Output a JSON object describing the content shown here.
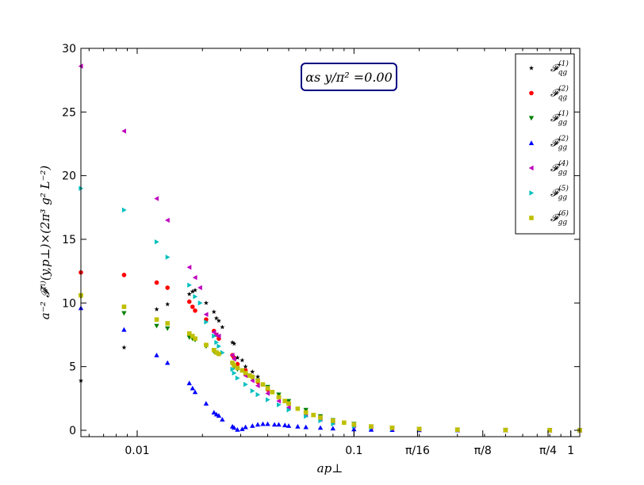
{
  "chart_data": {
    "type": "scatter",
    "xlabel": "ap⊥",
    "ylabel": "a⁻² 𝓕⁽ⁱ⁾(y,p⊥)×(2π³ g² L⁻²)",
    "annotation": "αs y/π² =0.00",
    "xscale": "log",
    "xlim": [
      0.0055,
      1.1
    ],
    "ylim": [
      -0.5,
      30
    ],
    "xticks": [
      {
        "value": 0.01,
        "label": "0.01"
      },
      {
        "value": 0.1,
        "label": "0.1"
      },
      {
        "value": 0.19635,
        "label": "π/16"
      },
      {
        "value": 0.3927,
        "label": "π/8"
      },
      {
        "value": 0.7854,
        "label": "π/4"
      },
      {
        "value": 1.0,
        "label": "1"
      }
    ],
    "yticks": [
      0,
      5,
      10,
      15,
      20,
      25,
      30
    ],
    "legend_position": "top-right",
    "series": [
      {
        "name": "𝓕qg(1)",
        "sub": "qg",
        "sup": "(1)",
        "color": "#000000",
        "marker": "star",
        "x": [
          0.0055,
          0.0087,
          0.0123,
          0.0138,
          0.0174,
          0.018,
          0.0185,
          0.0208,
          0.0226,
          0.0232,
          0.0238,
          0.0247,
          0.0275,
          0.028,
          0.029,
          0.0305,
          0.0316,
          0.034,
          0.036,
          0.04,
          0.045,
          0.05,
          0.06,
          0.07,
          0.08,
          0.1,
          0.12,
          0.15,
          0.2,
          0.3,
          0.5,
          0.8,
          1.1
        ],
        "y": [
          3.9,
          6.5,
          9.5,
          9.9,
          10.7,
          10.9,
          11.0,
          10.0,
          9.3,
          8.8,
          8.6,
          8.1,
          6.9,
          6.8,
          5.7,
          5.5,
          5.0,
          4.6,
          4.2,
          3.3,
          2.6,
          2.1,
          1.4,
          1.0,
          0.7,
          0.4,
          0.25,
          0.15,
          0.08,
          0.04,
          0.02,
          0.01,
          0.0
        ]
      },
      {
        "name": "𝓕qg(2)",
        "sub": "qg",
        "sup": "(2)",
        "color": "#ff0000",
        "marker": "circle",
        "x": [
          0.0055,
          0.0087,
          0.0123,
          0.0138,
          0.0174,
          0.018,
          0.0185,
          0.0208,
          0.0226,
          0.0232,
          0.0238,
          0.0275,
          0.028,
          0.029,
          0.0316,
          0.034,
          0.036,
          0.04,
          0.045,
          0.05,
          0.06,
          0.07,
          0.08,
          0.1,
          0.12,
          0.15,
          0.2,
          0.3,
          0.5,
          0.8,
          1.1
        ],
        "y": [
          12.4,
          12.2,
          11.6,
          11.2,
          10.1,
          9.7,
          9.4,
          8.7,
          7.8,
          7.5,
          7.2,
          5.9,
          5.7,
          5.2,
          4.7,
          4.2,
          3.8,
          3.2,
          2.6,
          2.1,
          1.4,
          1.0,
          0.7,
          0.4,
          0.25,
          0.15,
          0.08,
          0.04,
          0.02,
          0.01,
          0.0
        ]
      },
      {
        "name": "𝓕gg(1)",
        "sub": "gg",
        "sup": "(1)",
        "color": "#008000",
        "marker": "triangle-down",
        "x": [
          0.0055,
          0.0087,
          0.0123,
          0.0138,
          0.0174,
          0.018,
          0.0185,
          0.0208,
          0.0226,
          0.0232,
          0.0238,
          0.0275,
          0.028,
          0.029,
          0.0316,
          0.034,
          0.036,
          0.04,
          0.045,
          0.05,
          0.06,
          0.07,
          0.08,
          0.1,
          0.12,
          0.15,
          0.2,
          0.3,
          0.5,
          0.8,
          1.1
        ],
        "y": [
          10.5,
          9.2,
          8.2,
          8.0,
          7.3,
          7.2,
          7.1,
          6.6,
          6.2,
          6.1,
          6.0,
          5.2,
          5.0,
          4.8,
          4.4,
          4.1,
          3.9,
          3.4,
          2.8,
          2.3,
          1.6,
          1.1,
          0.8,
          0.5,
          0.3,
          0.18,
          0.1,
          0.05,
          0.02,
          0.01,
          0.0
        ]
      },
      {
        "name": "𝓕gg(2)",
        "sub": "gg",
        "sup": "(2)",
        "color": "#0000ff",
        "marker": "triangle-up",
        "x": [
          0.0055,
          0.0087,
          0.0123,
          0.0138,
          0.0174,
          0.018,
          0.0185,
          0.0208,
          0.0226,
          0.0232,
          0.0238,
          0.0247,
          0.0275,
          0.028,
          0.029,
          0.0305,
          0.0316,
          0.034,
          0.036,
          0.038,
          0.04,
          0.043,
          0.045,
          0.048,
          0.05,
          0.055,
          0.06,
          0.07,
          0.08,
          0.1,
          0.12,
          0.15,
          0.2,
          0.3,
          0.5,
          0.8,
          1.1
        ],
        "y": [
          9.6,
          7.9,
          5.9,
          5.3,
          3.7,
          3.3,
          3.0,
          2.1,
          1.4,
          1.25,
          1.15,
          0.85,
          0.3,
          0.2,
          0.05,
          0.1,
          0.25,
          0.35,
          0.45,
          0.5,
          0.5,
          0.45,
          0.45,
          0.4,
          0.35,
          0.3,
          0.25,
          0.2,
          0.15,
          0.08,
          0.05,
          0.03,
          0.02,
          0.01,
          0.0,
          0.0,
          0.0
        ]
      },
      {
        "name": "𝓕gg(4)",
        "sub": "gg",
        "sup": "(4)",
        "color": "#bf00bf",
        "marker": "triangle-left",
        "x": [
          0.0055,
          0.0087,
          0.0123,
          0.0138,
          0.0174,
          0.0185,
          0.0195,
          0.0208,
          0.0226,
          0.0232,
          0.0238,
          0.0275,
          0.028,
          0.0316,
          0.034,
          0.036,
          0.04,
          0.045,
          0.05,
          0.06,
          0.07,
          0.08,
          0.1,
          0.12,
          0.15,
          0.2,
          0.3,
          0.5,
          0.8,
          1.1
        ],
        "y": [
          28.6,
          23.5,
          18.2,
          16.5,
          12.8,
          12.0,
          11.2,
          9.1,
          7.7,
          7.5,
          7.4,
          5.9,
          5.6,
          4.3,
          3.9,
          3.5,
          2.9,
          2.3,
          1.8,
          1.2,
          0.85,
          0.6,
          0.35,
          0.22,
          0.13,
          0.07,
          0.03,
          0.01,
          0.0,
          0.0
        ]
      },
      {
        "name": "𝓕gg(5)",
        "sub": "gg",
        "sup": "(5)",
        "color": "#00bfbf",
        "marker": "triangle-right",
        "x": [
          0.0055,
          0.0087,
          0.0123,
          0.0138,
          0.0174,
          0.0185,
          0.0195,
          0.0208,
          0.0226,
          0.0232,
          0.0238,
          0.0247,
          0.0275,
          0.028,
          0.029,
          0.0316,
          0.034,
          0.036,
          0.04,
          0.045,
          0.05,
          0.06,
          0.07,
          0.08,
          0.1,
          0.12,
          0.15,
          0.2,
          0.3,
          0.5,
          0.8,
          1.1
        ],
        "y": [
          19.0,
          17.3,
          14.8,
          13.6,
          11.4,
          10.5,
          10.0,
          8.5,
          7.4,
          6.9,
          6.6,
          6.1,
          4.8,
          4.5,
          4.1,
          3.6,
          3.1,
          2.8,
          2.4,
          2.0,
          1.6,
          1.1,
          0.75,
          0.5,
          0.3,
          0.2,
          0.12,
          0.06,
          0.03,
          0.01,
          0.0,
          0.0
        ]
      },
      {
        "name": "𝓕gg(6)",
        "sub": "gg",
        "sup": "(6)",
        "color": "#bfbf00",
        "marker": "square",
        "x": [
          0.0055,
          0.0087,
          0.0123,
          0.0138,
          0.0174,
          0.018,
          0.0185,
          0.0208,
          0.0226,
          0.0232,
          0.0238,
          0.0275,
          0.028,
          0.029,
          0.0305,
          0.0316,
          0.033,
          0.034,
          0.036,
          0.038,
          0.04,
          0.042,
          0.045,
          0.048,
          0.05,
          0.055,
          0.06,
          0.065,
          0.07,
          0.08,
          0.09,
          0.1,
          0.12,
          0.15,
          0.2,
          0.3,
          0.5,
          0.8,
          1.1
        ],
        "y": [
          10.6,
          9.7,
          8.7,
          8.4,
          7.6,
          7.4,
          7.2,
          6.7,
          6.3,
          6.1,
          6.0,
          5.3,
          5.1,
          4.9,
          4.7,
          4.5,
          4.3,
          4.2,
          3.9,
          3.6,
          3.3,
          3.0,
          2.6,
          2.3,
          2.1,
          1.7,
          1.4,
          1.2,
          1.0,
          0.75,
          0.6,
          0.45,
          0.3,
          0.2,
          0.1,
          0.05,
          0.02,
          0.0,
          0.0
        ]
      }
    ]
  }
}
